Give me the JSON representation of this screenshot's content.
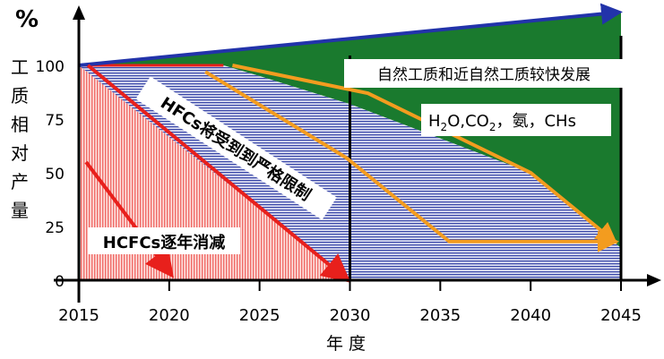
{
  "chart_data": {
    "type": "area",
    "ylabel_unit": "%",
    "ylabel": "工质相对产量",
    "xlabel": "年 度",
    "x_ticks": [
      "2015",
      "2020",
      "2025",
      "2030",
      "2035",
      "2040",
      "2045"
    ],
    "y_ticks": [
      "0",
      "25",
      "50",
      "75",
      "100"
    ],
    "xlim": [
      2015,
      2045
    ],
    "ylim": [
      0,
      100
    ],
    "divider_year": 2030,
    "regions": [
      {
        "name": "HCFCs逐年消减",
        "color": "#ff6666",
        "boundary": {
          "x": [
            2015,
            2030
          ],
          "y": [
            100,
            0
          ]
        }
      },
      {
        "name": "HFCs将受到严格限制",
        "color": "#3344aa",
        "boundary": {
          "x": [
            2015,
            2023,
            2025,
            2030,
            2040,
            2045
          ],
          "y": [
            100,
            100,
            95,
            82,
            50,
            15
          ]
        }
      },
      {
        "name": "自然工质和近自然工质较快发展",
        "color": "#1a7a2e",
        "boundary": {
          "x": [
            2015,
            2045
          ],
          "y": [
            100,
            125
          ]
        }
      }
    ],
    "annotations": {
      "hcfc_label": "HCFCs逐年消减",
      "hfc_label": "HFCs将受到到严格限制",
      "natural_label": "自然工质和近自然工质较快发展",
      "examples_label_parts": [
        "H",
        "2",
        "O,CO",
        "2",
        "，氨，CHs"
      ]
    },
    "colors": {
      "hcfc": "#ff6666",
      "hfc": "#3344aa",
      "natural": "#1a7a2e",
      "arrow_red": "#e8201c",
      "arrow_orange": "#f39c1f",
      "arrow_blue": "#2233aa"
    }
  }
}
